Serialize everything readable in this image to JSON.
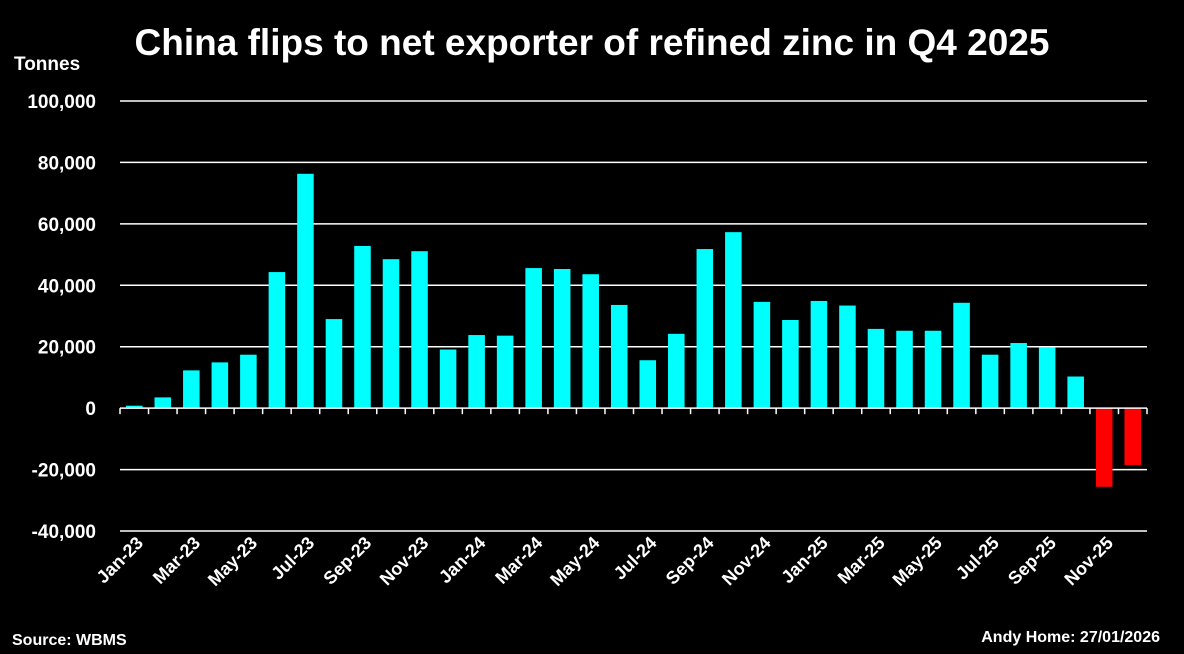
{
  "chart_data": {
    "type": "bar",
    "title": "China flips to net exporter of refined zinc in Q4 2025",
    "ylabel": "Tonnes",
    "xlabel": "",
    "ylim": [
      -40000,
      100000
    ],
    "yticks": [
      100000,
      80000,
      60000,
      40000,
      20000,
      0,
      -20000,
      -40000
    ],
    "ytick_labels": [
      "100,000",
      "80,000",
      "60,000",
      "40,000",
      "20,000",
      "0",
      "-20,000",
      "-40,000"
    ],
    "grid": true,
    "categories": [
      "Jan-23",
      "Feb-23",
      "Mar-23",
      "Apr-23",
      "May-23",
      "Jun-23",
      "Jul-23",
      "Aug-23",
      "Sep-23",
      "Oct-23",
      "Nov-23",
      "Dec-23",
      "Jan-24",
      "Feb-24",
      "Mar-24",
      "Apr-24",
      "May-24",
      "Jun-24",
      "Jul-24",
      "Aug-24",
      "Sep-24",
      "Oct-24",
      "Nov-24",
      "Dec-24",
      "Jan-25",
      "Feb-25",
      "Mar-25",
      "Apr-25",
      "May-25",
      "Jun-25",
      "Jul-25",
      "Aug-25",
      "Sep-25",
      "Oct-25",
      "Nov-25",
      "Dec-25"
    ],
    "x_tick_labels": [
      "Jan-23",
      "Mar-23",
      "May-23",
      "Jul-23",
      "Sep-23",
      "Nov-23",
      "Jan-24",
      "Mar-24",
      "May-24",
      "Jul-24",
      "Sep-24",
      "Nov-24",
      "Jan-25",
      "Mar-25",
      "May-25",
      "Jul-25",
      "Sep-25",
      "Nov-25"
    ],
    "values": [
      800,
      3500,
      12300,
      14900,
      17400,
      44300,
      76300,
      29000,
      52800,
      48500,
      51100,
      19100,
      23800,
      23600,
      45600,
      45300,
      43600,
      33600,
      15600,
      24200,
      51800,
      57300,
      34600,
      28700,
      34900,
      33400,
      25800,
      25200,
      25200,
      34300,
      17400,
      21200,
      19800,
      10300,
      -25600,
      -18500
    ],
    "colors": {
      "positive": "#00FFFF",
      "negative": "#FF0000",
      "background": "#000000",
      "grid": "#FFFFFF"
    }
  },
  "source": "Source: WBMS",
  "credit": "Andy Home: 27/01/2026"
}
